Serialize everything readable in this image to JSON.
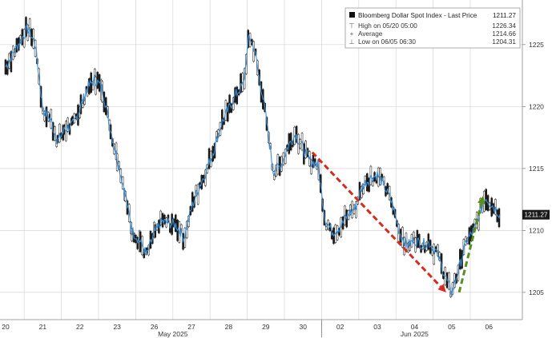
{
  "chart_data": {
    "type": "line",
    "series": [
      {
        "name": "Bloomberg Dollar Spot Index - Last Price",
        "points": [
          [
            0.0,
            1223.2
          ],
          [
            0.3,
            1224.8
          ],
          [
            0.6,
            1226.3
          ],
          [
            0.8,
            1225.0
          ],
          [
            1.0,
            1219.8
          ],
          [
            1.2,
            1219.0
          ],
          [
            1.4,
            1217.2
          ],
          [
            1.6,
            1218.2
          ],
          [
            1.8,
            1218.5
          ],
          [
            2.0,
            1219.8
          ],
          [
            2.2,
            1221.5
          ],
          [
            2.4,
            1222.2
          ],
          [
            2.6,
            1221.5
          ],
          [
            2.8,
            1218.5
          ],
          [
            3.0,
            1215.8
          ],
          [
            3.2,
            1213.2
          ],
          [
            3.4,
            1210.0
          ],
          [
            3.6,
            1209.2
          ],
          [
            3.8,
            1208.0
          ],
          [
            4.0,
            1209.8
          ],
          [
            4.2,
            1210.7
          ],
          [
            4.4,
            1210.6
          ],
          [
            4.6,
            1210.4
          ],
          [
            4.8,
            1209.4
          ],
          [
            5.0,
            1211.8
          ],
          [
            5.2,
            1213.5
          ],
          [
            5.4,
            1214.8
          ],
          [
            5.6,
            1216.5
          ],
          [
            5.8,
            1218.6
          ],
          [
            6.0,
            1219.8
          ],
          [
            6.2,
            1221.0
          ],
          [
            6.4,
            1221.8
          ],
          [
            6.55,
            1225.7
          ],
          [
            6.7,
            1224.6
          ],
          [
            6.8,
            1222.6
          ],
          [
            6.9,
            1221.2
          ],
          [
            7.0,
            1219.2
          ],
          [
            7.2,
            1214.8
          ],
          [
            7.4,
            1215.2
          ],
          [
            7.6,
            1216.8
          ],
          [
            7.8,
            1217.8
          ],
          [
            8.0,
            1216.6
          ],
          [
            8.2,
            1215.6
          ],
          [
            8.4,
            1215.3
          ],
          [
            8.6,
            1210.8
          ],
          [
            8.8,
            1209.9
          ],
          [
            9.0,
            1210.3
          ],
          [
            9.2,
            1211.2
          ],
          [
            9.4,
            1211.8
          ],
          [
            9.6,
            1213.6
          ],
          [
            9.8,
            1214.2
          ],
          [
            10.0,
            1214.5
          ],
          [
            10.2,
            1213.5
          ],
          [
            10.4,
            1212.2
          ],
          [
            10.6,
            1209.8
          ],
          [
            10.8,
            1208.8
          ],
          [
            11.0,
            1209.2
          ],
          [
            11.2,
            1208.9
          ],
          [
            11.4,
            1209.0
          ],
          [
            11.6,
            1208.2
          ],
          [
            11.8,
            1206.5
          ],
          [
            12.0,
            1204.9
          ],
          [
            12.2,
            1207.0
          ],
          [
            12.4,
            1209.2
          ],
          [
            12.6,
            1210.0
          ],
          [
            12.8,
            1211.8
          ],
          [
            12.9,
            1212.7
          ],
          [
            13.1,
            1212.0
          ],
          [
            13.3,
            1211.3
          ]
        ]
      }
    ],
    "x_ticks": [
      {
        "label": "20",
        "x": 0
      },
      {
        "label": "21",
        "x": 1
      },
      {
        "label": "22",
        "x": 2
      },
      {
        "label": "23",
        "x": 3
      },
      {
        "label": "26",
        "x": 4
      },
      {
        "label": "27",
        "x": 5
      },
      {
        "label": "28",
        "x": 6
      },
      {
        "label": "29",
        "x": 7
      },
      {
        "label": "30",
        "x": 8
      },
      {
        "label": "02",
        "x": 9
      },
      {
        "label": "03",
        "x": 10
      },
      {
        "label": "04",
        "x": 11
      },
      {
        "label": "05",
        "x": 12
      },
      {
        "label": "06",
        "x": 13
      }
    ],
    "month_labels": [
      {
        "label": "May 2025",
        "x": 4.5
      },
      {
        "label": "Jun 2025",
        "x": 11
      }
    ],
    "y_ticks": [
      1205,
      1210,
      1215,
      1220,
      1225
    ],
    "xlim": [
      -0.15,
      13.9
    ],
    "ylim": [
      1202.8,
      1228.6
    ],
    "grid": true,
    "last_price": {
      "value": 1211.27,
      "label": "1211.27"
    },
    "legend": {
      "position": "top-right",
      "title": "Bloomberg Dollar Spot Index - Last Price",
      "title_value": "1211.27",
      "rows": [
        {
          "label": "High on 05/20 05:00",
          "value": "1226.34",
          "symbol": "T"
        },
        {
          "label": "Average",
          "value": "1214.66",
          "symbol": "+"
        },
        {
          "label": "Low on 06/05 06:30",
          "value": "1204.31",
          "symbol": "L"
        }
      ]
    },
    "annotations": [
      {
        "type": "arrow",
        "color": "#d62b1f",
        "from": [
          8.25,
          1216.3
        ],
        "to": [
          11.85,
          1205.0
        ]
      },
      {
        "type": "arrow",
        "color": "#5a8f1c",
        "from": [
          12.2,
          1205.0
        ],
        "to": [
          12.85,
          1212.8
        ]
      }
    ]
  },
  "colors": {
    "line": "#3f8fd2",
    "candle": "#1a1a1a",
    "grid": "#d6d6d6",
    "axis_text": "#333333",
    "price_tag_bg": "#1a1a1a",
    "price_tag_text": "#ffffff"
  }
}
